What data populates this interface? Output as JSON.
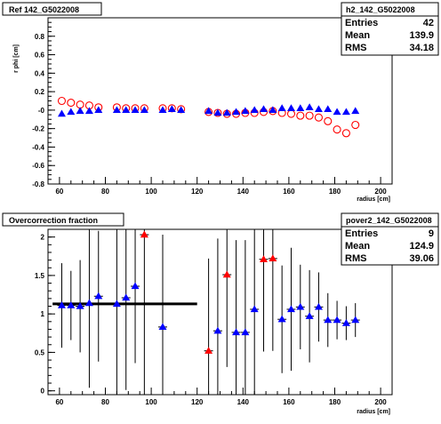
{
  "chart_data": [
    {
      "type": "scatter",
      "title": "Ref 142_G5022008",
      "xlabel": "radius [cm]",
      "ylabel": "r phi [cm]",
      "xlim": [
        55,
        205
      ],
      "ylim": [
        -0.8,
        1.0
      ],
      "x_ticks": [
        "60",
        "80",
        "100",
        "120",
        "140",
        "160",
        "180",
        "200"
      ],
      "y_ticks": [
        "-0.8",
        "-0.6",
        "-0.4",
        "-0.2",
        "-0",
        "0.2",
        "0.4",
        "0.6",
        "0.8"
      ],
      "stats_box": {
        "name": "h2_142_G5022008",
        "rows": [
          {
            "label": "Entries",
            "value": "42"
          },
          {
            "label": "Mean",
            "value": "139.9"
          },
          {
            "label": "RMS",
            "value": "34.18"
          }
        ]
      },
      "series": [
        {
          "marker": "open-circle",
          "color": "#ff0000",
          "x": [
            61,
            65,
            69,
            73,
            77,
            85,
            89,
            93,
            97,
            105,
            109,
            113,
            125,
            129,
            133,
            137,
            141,
            145,
            149,
            153,
            157,
            161,
            165,
            169,
            173,
            177,
            181,
            185,
            189
          ],
          "y": [
            0.1,
            0.08,
            0.06,
            0.05,
            0.03,
            0.03,
            0.02,
            0.02,
            0.02,
            0.02,
            0.02,
            0.01,
            -0.02,
            -0.03,
            -0.04,
            -0.04,
            -0.03,
            -0.03,
            -0.02,
            -0.01,
            -0.03,
            -0.04,
            -0.06,
            -0.06,
            -0.08,
            -0.12,
            -0.21,
            -0.25,
            -0.16
          ]
        },
        {
          "marker": "filled-triangle",
          "color": "#0000ff",
          "x": [
            61,
            65,
            69,
            73,
            77,
            85,
            89,
            93,
            97,
            105,
            109,
            113,
            125,
            129,
            133,
            137,
            141,
            145,
            149,
            153,
            157,
            161,
            165,
            169,
            173,
            177,
            181,
            185,
            189
          ],
          "y": [
            -0.04,
            -0.02,
            -0.01,
            -0.01,
            0.0,
            0.0,
            0.0,
            0.0,
            0.0,
            0.0,
            0.01,
            0.0,
            -0.01,
            -0.03,
            -0.03,
            -0.02,
            -0.01,
            0.0,
            0.01,
            0.0,
            0.02,
            0.02,
            0.02,
            0.03,
            0.01,
            0.01,
            -0.02,
            -0.02,
            -0.01
          ]
        }
      ]
    },
    {
      "type": "scatter",
      "title": "Overcorrection fraction",
      "xlabel": "radius [cm]",
      "ylabel": "",
      "xlim": [
        55,
        205
      ],
      "ylim": [
        -0.05,
        2.1
      ],
      "x_ticks": [
        "60",
        "80",
        "100",
        "120",
        "140",
        "160",
        "180",
        "200"
      ],
      "y_ticks": [
        "0",
        "0.5",
        "1",
        "1.5",
        "2"
      ],
      "stats_box": {
        "name": "pover2_142_G5022008",
        "rows": [
          {
            "label": "Entries",
            "value": "9"
          },
          {
            "label": "Mean",
            "value": "124.9"
          },
          {
            "label": "RMS",
            "value": "39.06"
          }
        ]
      },
      "reference_line": {
        "x": [
          57,
          120
        ],
        "y": 1.13,
        "color": "#000000"
      },
      "points": [
        {
          "x": 61,
          "y": 1.11,
          "err": 0.55,
          "color": "#0000ff"
        },
        {
          "x": 65,
          "y": 1.11,
          "err": 0.45,
          "color": "#0000ff"
        },
        {
          "x": 69,
          "y": 1.1,
          "err": 0.6,
          "color": "#0000ff"
        },
        {
          "x": 73,
          "y": 1.14,
          "err": 1.1,
          "color": "#0000ff"
        },
        {
          "x": 77,
          "y": 1.23,
          "err": 0.85,
          "color": "#0000ff"
        },
        {
          "x": 85,
          "y": 1.13,
          "err": 1.2,
          "color": "#0000ff"
        },
        {
          "x": 89,
          "y": 1.21,
          "err": 1.2,
          "color": "#0000ff"
        },
        {
          "x": 93,
          "y": 1.36,
          "err": 1.0,
          "color": "#0000ff"
        },
        {
          "x": 97,
          "y": 2.03,
          "err": 2.1,
          "color": "#ff0000"
        },
        {
          "x": 105,
          "y": 0.83,
          "err": 1.2,
          "color": "#0000ff"
        },
        {
          "x": 125,
          "y": 0.52,
          "err": 1.2,
          "color": "#ff0000"
        },
        {
          "x": 129,
          "y": 0.78,
          "err": 1.2,
          "color": "#0000ff"
        },
        {
          "x": 133,
          "y": 1.51,
          "err": 1.2,
          "color": "#ff0000"
        },
        {
          "x": 137,
          "y": 0.76,
          "err": 1.2,
          "color": "#0000ff"
        },
        {
          "x": 141,
          "y": 0.76,
          "err": 1.2,
          "color": "#0000ff"
        },
        {
          "x": 145,
          "y": 1.06,
          "err": 1.2,
          "color": "#0000ff"
        },
        {
          "x": 149,
          "y": 1.71,
          "err": 1.2,
          "color": "#ff0000"
        },
        {
          "x": 153,
          "y": 1.72,
          "err": 1.2,
          "color": "#ff0000"
        },
        {
          "x": 157,
          "y": 0.93,
          "err": 0.7,
          "color": "#0000ff"
        },
        {
          "x": 161,
          "y": 1.06,
          "err": 0.8,
          "color": "#0000ff"
        },
        {
          "x": 165,
          "y": 1.09,
          "err": 0.55,
          "color": "#0000ff"
        },
        {
          "x": 169,
          "y": 0.97,
          "err": 0.6,
          "color": "#0000ff"
        },
        {
          "x": 173,
          "y": 1.09,
          "err": 0.45,
          "color": "#0000ff"
        },
        {
          "x": 177,
          "y": 0.92,
          "err": 0.35,
          "color": "#0000ff"
        },
        {
          "x": 181,
          "y": 0.92,
          "err": 0.25,
          "color": "#0000ff"
        },
        {
          "x": 185,
          "y": 0.88,
          "err": 0.22,
          "color": "#0000ff"
        },
        {
          "x": 189,
          "y": 0.92,
          "err": 0.22,
          "color": "#0000ff"
        }
      ]
    }
  ]
}
